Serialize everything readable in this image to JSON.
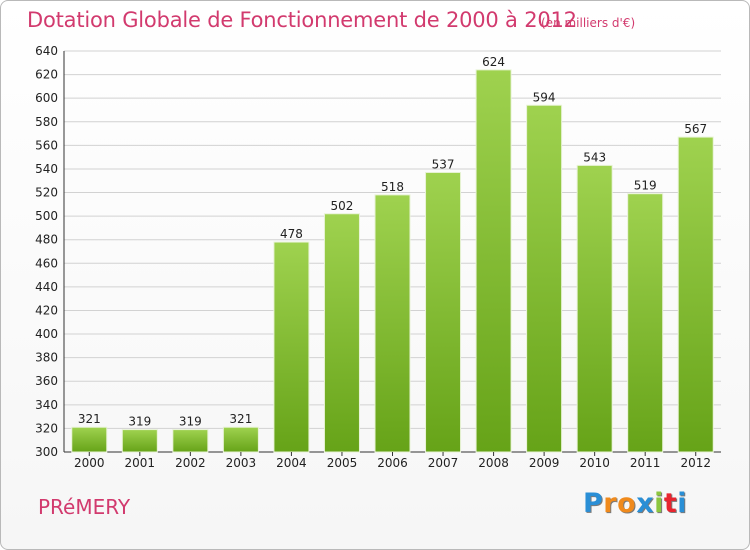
{
  "header": {
    "title": "Dotation Globale de Fonctionnement de 2000 à 2012",
    "subtitle": "(en milliers d'€)"
  },
  "footer": {
    "commune": "PRéMERY",
    "logo_letters": [
      "P",
      "r",
      "o",
      "x",
      "i",
      "t",
      "i"
    ],
    "logo_colors": [
      "#2a8fd6",
      "#f08a1c",
      "#f08a1c",
      "#2a8fd6",
      "#8cc63f",
      "#e8252f",
      "#2a8fd6"
    ]
  },
  "colors": {
    "bar_top": "#9fd24f",
    "bar_bottom": "#66a318",
    "grid": "#d2d2d2",
    "title": "#d23a6e"
  },
  "chart_data": {
    "type": "bar",
    "categories": [
      "2000",
      "2001",
      "2002",
      "2003",
      "2004",
      "2005",
      "2006",
      "2007",
      "2008",
      "2009",
      "2010",
      "2011",
      "2012"
    ],
    "values": [
      321,
      319,
      319,
      321,
      478,
      502,
      518,
      537,
      624,
      594,
      543,
      519,
      567
    ],
    "ylim": [
      300,
      640
    ],
    "yticks": [
      300,
      320,
      340,
      360,
      380,
      400,
      420,
      440,
      460,
      480,
      500,
      520,
      540,
      560,
      580,
      600,
      620,
      640
    ],
    "grid": true,
    "xlabel": "",
    "ylabel": ""
  }
}
